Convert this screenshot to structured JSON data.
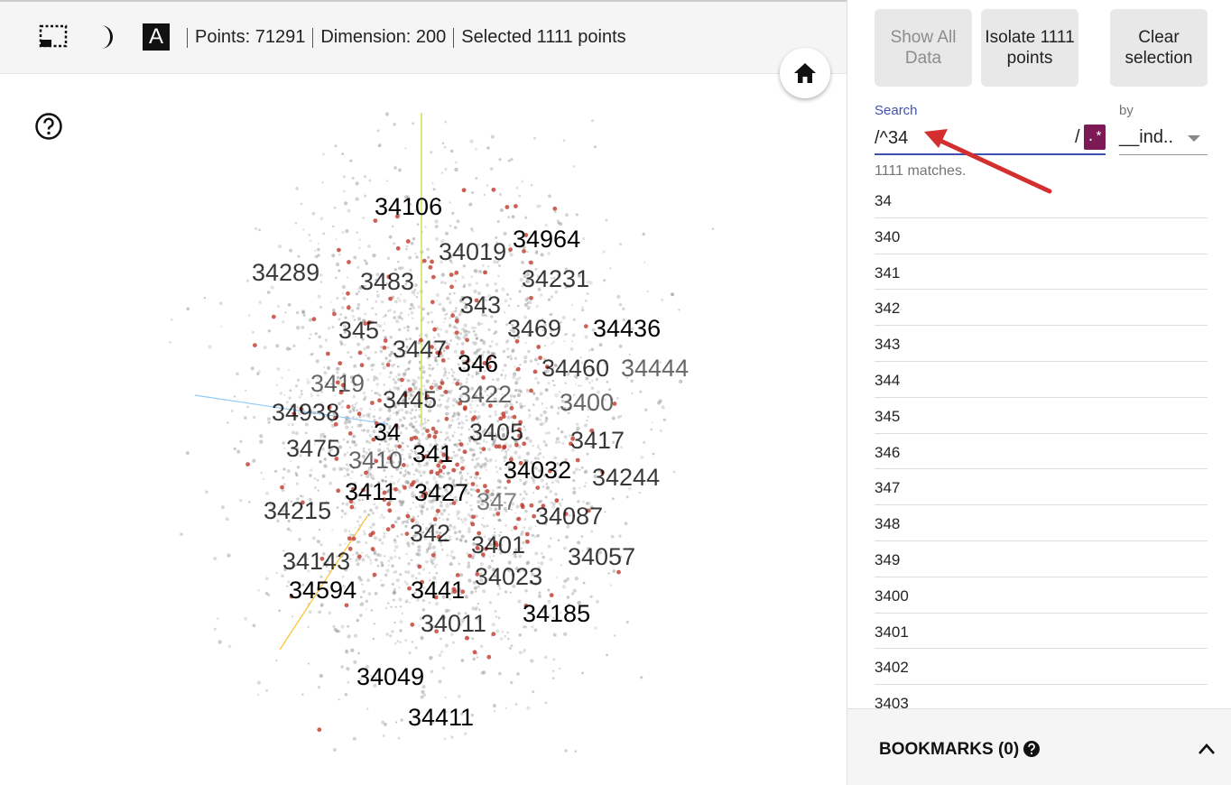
{
  "toolbar": {
    "icons": [
      "select-rect-icon",
      "night-mode-icon",
      "label-toggle-icon"
    ],
    "label_toggle_text": "A",
    "points": "Points: 71291",
    "dimension": "Dimension: 200",
    "selected": "Selected 1111 points"
  },
  "sidebar": {
    "show_all_label": "Show All Data",
    "isolate_label": "Isolate 1111 points",
    "clear_label": "Clear selection",
    "search_label": "Search",
    "search_value": "/^34",
    "regex_slash": "/",
    "regex_label": ".*",
    "by_label": "by",
    "by_value": "__ind..",
    "matches": "1111 matches.",
    "results": [
      "34",
      "340",
      "341",
      "342",
      "343",
      "344",
      "345",
      "346",
      "347",
      "348",
      "349",
      "3400",
      "3401",
      "3402",
      "3403"
    ],
    "bookmarks_title": "BOOKMARKS (0)"
  },
  "colors": {
    "accent": "#3f51b5",
    "regex_bg": "#7b1a55",
    "annotation_arrow": "#d32f2f",
    "selected_point": "#c0392b"
  },
  "projection_labels": [
    {
      "text": "34106"
    },
    {
      "text": "34964"
    },
    {
      "text": "34019"
    },
    {
      "text": "34289"
    },
    {
      "text": "3483"
    },
    {
      "text": "34231"
    },
    {
      "text": "343"
    },
    {
      "text": "345"
    },
    {
      "text": "3469"
    },
    {
      "text": "34436"
    },
    {
      "text": "3447"
    },
    {
      "text": "346"
    },
    {
      "text": "34460"
    },
    {
      "text": "34444"
    },
    {
      "text": "3419"
    },
    {
      "text": "3422"
    },
    {
      "text": "3445"
    },
    {
      "text": "3400"
    },
    {
      "text": "34938"
    },
    {
      "text": "34"
    },
    {
      "text": "3405"
    },
    {
      "text": "3417"
    },
    {
      "text": "3475"
    },
    {
      "text": "3410"
    },
    {
      "text": "341"
    },
    {
      "text": "34032"
    },
    {
      "text": "34244"
    },
    {
      "text": "3411"
    },
    {
      "text": "3427"
    },
    {
      "text": "347"
    },
    {
      "text": "34215"
    },
    {
      "text": "34087"
    },
    {
      "text": "342"
    },
    {
      "text": "3401"
    },
    {
      "text": "34057"
    },
    {
      "text": "34143"
    },
    {
      "text": "34594"
    },
    {
      "text": "3441"
    },
    {
      "text": "34023"
    },
    {
      "text": "34011"
    },
    {
      "text": "34185"
    },
    {
      "text": "34049"
    },
    {
      "text": "34411"
    }
  ]
}
